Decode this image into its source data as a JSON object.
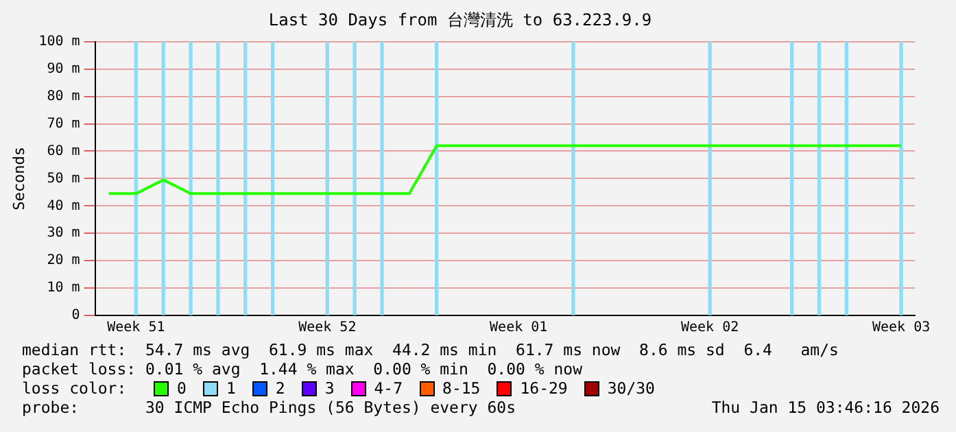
{
  "chart_data": {
    "type": "line",
    "title": "Last 30 Days from 台灣清洗 to 63.223.9.9",
    "ylabel": "Seconds",
    "legend_title": "loss color:",
    "categories": [
      null,
      "Week 51",
      null,
      null,
      null,
      null,
      null,
      null,
      "Week 52",
      null,
      null,
      null,
      null,
      null,
      null,
      "Week 01",
      null,
      null,
      null,
      null,
      null,
      null,
      "Week 02",
      null,
      null,
      null,
      null,
      null,
      null,
      "Week 03"
    ],
    "series": [
      {
        "name": "0",
        "color": "#26ff00",
        "values": [
          44.5,
          44.5,
          49.5,
          44.5,
          44.5,
          44.5,
          44.5,
          44.5,
          44.5,
          44.5,
          44.5,
          44.5,
          62,
          62,
          62,
          62,
          62,
          62,
          62,
          62,
          62,
          62,
          62,
          62,
          62,
          62,
          62,
          62,
          62,
          62
        ]
      },
      {
        "name": "1",
        "color": "#8fdcf5",
        "type": "bar",
        "values": [
          null,
          100,
          100,
          100,
          100,
          100,
          100,
          null,
          100,
          100,
          100,
          null,
          100,
          null,
          null,
          null,
          null,
          100,
          null,
          null,
          null,
          null,
          100,
          null,
          null,
          100,
          100,
          100,
          null,
          100
        ]
      },
      {
        "name": "2",
        "color": "#0059ff",
        "values": [
          null,
          null,
          null,
          null,
          null,
          null,
          null,
          null,
          null,
          null,
          null,
          null,
          null,
          null,
          null,
          null,
          null,
          null,
          null,
          null,
          null,
          null,
          null,
          null,
          null,
          null,
          null,
          null,
          null,
          null
        ]
      },
      {
        "name": "3",
        "color": "#5e00ff",
        "values": [
          null,
          null,
          null,
          null,
          null,
          null,
          null,
          null,
          null,
          null,
          null,
          null,
          null,
          null,
          null,
          null,
          null,
          null,
          null,
          null,
          null,
          null,
          null,
          null,
          null,
          null,
          null,
          null,
          null,
          null
        ]
      },
      {
        "name": "4-7",
        "color": "#ff00f0",
        "values": [
          null,
          null,
          null,
          null,
          null,
          null,
          null,
          null,
          null,
          null,
          null,
          null,
          null,
          null,
          null,
          null,
          null,
          null,
          null,
          null,
          null,
          null,
          null,
          null,
          null,
          null,
          null,
          null,
          null,
          null
        ]
      },
      {
        "name": "8-15",
        "color": "#ff5d00",
        "values": [
          null,
          null,
          null,
          null,
          null,
          null,
          null,
          null,
          null,
          null,
          null,
          null,
          null,
          null,
          null,
          null,
          null,
          null,
          null,
          null,
          null,
          null,
          null,
          null,
          null,
          null,
          null,
          null,
          null,
          null
        ]
      },
      {
        "name": "16-29",
        "color": "#ff0000",
        "values": [
          null,
          null,
          null,
          null,
          null,
          null,
          null,
          null,
          null,
          null,
          null,
          null,
          null,
          null,
          null,
          null,
          null,
          null,
          null,
          null,
          null,
          null,
          null,
          null,
          null,
          null,
          null,
          null,
          null,
          null
        ]
      },
      {
        "name": "30/30",
        "color": "#a10000",
        "values": [
          null,
          null,
          null,
          null,
          null,
          null,
          null,
          null,
          null,
          null,
          null,
          null,
          null,
          null,
          null,
          null,
          null,
          null,
          null,
          null,
          null,
          null,
          null,
          null,
          null,
          null,
          null,
          null,
          null,
          null
        ]
      }
    ],
    "ylim": [
      0,
      100
    ],
    "yticks": [
      0,
      {
        "value": 10,
        "label": "10 m"
      },
      {
        "value": 20,
        "label": "20 m"
      },
      {
        "value": 30,
        "label": "30 m"
      },
      {
        "value": 40,
        "label": "40 m"
      },
      {
        "value": 50,
        "label": "50 m"
      },
      {
        "value": 60,
        "label": "60 m"
      },
      {
        "value": 70,
        "label": "70 m"
      },
      {
        "value": 80,
        "label": "80 m"
      },
      {
        "value": 90,
        "label": "90 m"
      },
      {
        "value": 100,
        "label": "100 m"
      }
    ],
    "annotations": [
      "median rtt:  54.7 ms avg  61.9 ms max  44.2 ms min  61.7 ms now  8.6 ms sd  6.4   am/s",
      "packet loss: 0.01 % avg  1.44 % max  0.00 % min  0.00 % now",
      "probe:       30 ICMP Echo Pings (56 Bytes) every 60s",
      "Thu Jan 15 03:46:16 2026"
    ],
    "grid": "y",
    "legend": "bottom",
    "marker": "none",
    "line_style": "solid"
  }
}
